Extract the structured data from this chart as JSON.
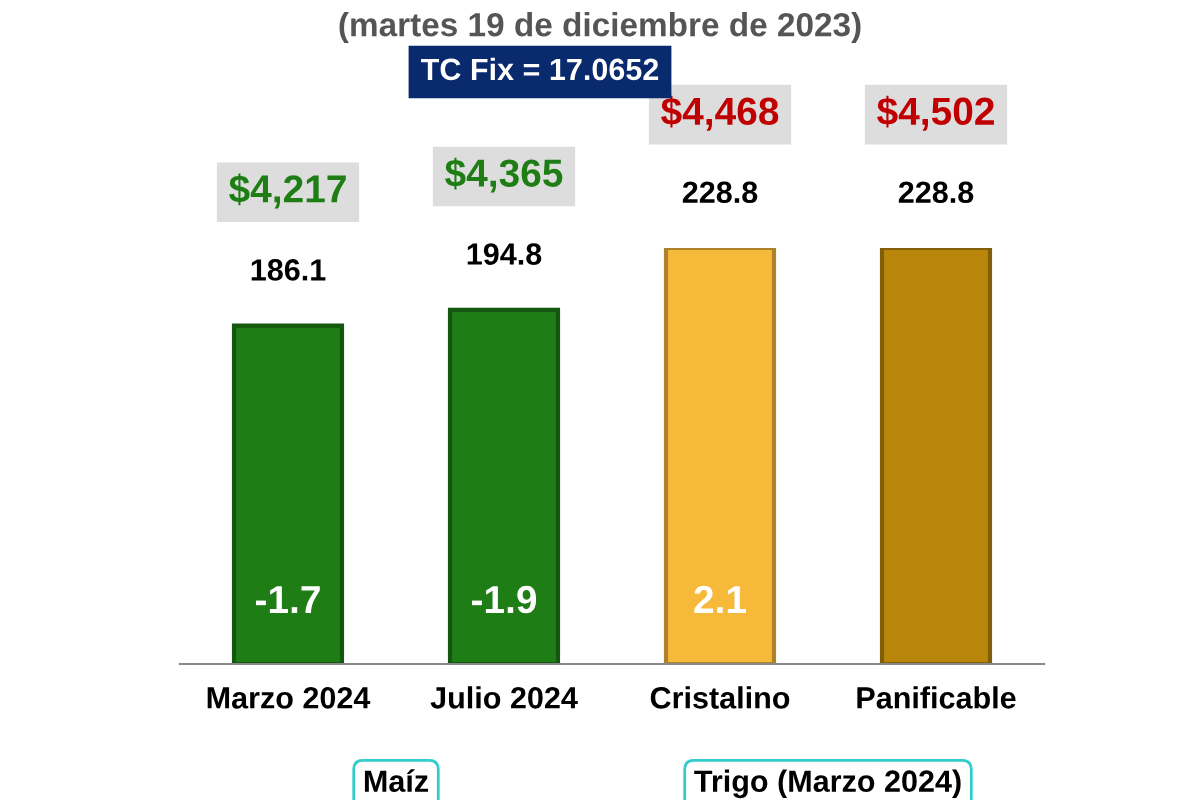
{
  "chart_data": {
    "type": "bar",
    "title": "(martes 19 de diciembre de 2023)",
    "categories": [
      "Marzo 2024",
      "Julio 2024",
      "Cristalino",
      "Panificable"
    ],
    "values": [
      186.1,
      194.8,
      228.8,
      228.8
    ],
    "colors": [
      "#1e7d14",
      "#1e7d14",
      "#f7b93a",
      "#b8860b"
    ],
    "tick_labels": "x",
    "data_labels": true,
    "annotations": [
      "TC Fix = 17.0652",
      "Maíz",
      "Trigo (Marzo 2024)",
      "$4,217",
      "$4,365",
      "$4,468",
      "$4,502",
      "-1.7",
      "-1.9",
      "2.1"
    ]
  }
}
